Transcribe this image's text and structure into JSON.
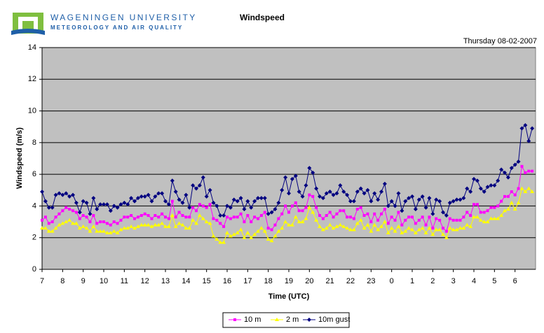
{
  "header": {
    "org": "WAGENINGEN UNIVERSITY",
    "dept": "METEOROLOGY AND AIR QUALITY"
  },
  "chart_data": {
    "type": "line",
    "title": "Windspeed",
    "subtitle": "Thursday 08-02-2007",
    "x_label": "Time (UTC)",
    "y_label": "Windspeed (m/s)",
    "ylim": [
      0,
      14
    ],
    "yticks": [
      0,
      2,
      4,
      6,
      8,
      10,
      12,
      14
    ],
    "grid": true,
    "legend": "bottom",
    "categories": [
      "7",
      null,
      null,
      null,
      null,
      null,
      "8",
      null,
      null,
      null,
      null,
      null,
      "9",
      null,
      null,
      null,
      null,
      null,
      "10",
      null,
      null,
      null,
      null,
      null,
      "11",
      null,
      null,
      null,
      null,
      null,
      "12",
      null,
      null,
      null,
      null,
      null,
      "13",
      null,
      null,
      null,
      null,
      null,
      "14",
      null,
      null,
      null,
      null,
      null,
      "15",
      null,
      null,
      null,
      null,
      null,
      "16",
      null,
      null,
      null,
      null,
      null,
      "17",
      null,
      null,
      null,
      null,
      null,
      "18",
      null,
      null,
      null,
      null,
      null,
      "19",
      null,
      null,
      null,
      null,
      null,
      "20",
      null,
      null,
      null,
      null,
      null,
      "21",
      null,
      null,
      null,
      null,
      null,
      "22",
      null,
      null,
      null,
      null,
      null,
      "23",
      null,
      null,
      null,
      null,
      null,
      "0",
      null,
      null,
      null,
      null,
      null,
      "1",
      null,
      null,
      null,
      null,
      null,
      "2",
      null,
      null,
      null,
      null,
      null,
      "3",
      null,
      null,
      null,
      null,
      null,
      "4",
      null,
      null,
      null,
      null,
      null,
      "5",
      null,
      null,
      null,
      null,
      null,
      "6",
      null,
      null,
      null,
      null,
      null
    ],
    "series": [
      {
        "name": "10 m",
        "color": "#ff00ff",
        "marker": "square",
        "values": [
          3.1,
          3.3,
          2.9,
          3.0,
          3.3,
          3.5,
          3.7,
          3.9,
          3.8,
          3.7,
          3.6,
          3.2,
          3.4,
          3.3,
          3.0,
          3.4,
          2.9,
          3.0,
          3.0,
          2.9,
          2.8,
          3.0,
          2.9,
          3.1,
          3.3,
          3.3,
          3.4,
          3.2,
          3.3,
          3.4,
          3.5,
          3.4,
          3.2,
          3.4,
          3.3,
          3.5,
          3.3,
          3.2,
          4.3,
          3.3,
          3.6,
          3.4,
          3.3,
          3.3,
          3.9,
          3.7,
          4.1,
          4.0,
          3.9,
          4.1,
          3.2,
          3.1,
          2.9,
          2.7,
          3.3,
          3.2,
          3.3,
          3.3,
          3.5,
          3.0,
          3.4,
          3.0,
          3.3,
          3.2,
          3.4,
          3.6,
          2.6,
          2.5,
          2.8,
          3.2,
          3.5,
          4.0,
          3.6,
          4.0,
          4.2,
          3.7,
          3.7,
          3.9,
          4.7,
          4.6,
          3.9,
          3.4,
          3.2,
          3.4,
          3.6,
          3.3,
          3.5,
          3.7,
          3.7,
          3.3,
          3.3,
          3.2,
          3.8,
          3.9,
          3.4,
          3.5,
          3.0,
          3.5,
          3.1,
          3.5,
          3.8,
          2.9,
          3.3,
          3.1,
          3.6,
          2.8,
          3.1,
          3.3,
          3.3,
          2.9,
          3.1,
          3.3,
          2.8,
          3.3,
          2.6,
          3.2,
          3.1,
          2.6,
          2.4,
          3.2,
          3.1,
          3.1,
          3.1,
          3.3,
          3.6,
          3.4,
          4.1,
          4.1,
          3.6,
          3.6,
          3.7,
          3.9,
          3.9,
          4.0,
          4.3,
          4.6,
          4.6,
          4.9,
          4.7,
          5.1,
          6.5,
          6.1,
          6.2,
          6.2
        ]
      },
      {
        "name": "2 m",
        "color": "#ffff00",
        "marker": "triangle",
        "values": [
          2.6,
          2.6,
          2.4,
          2.4,
          2.6,
          2.8,
          2.9,
          3.0,
          3.1,
          2.9,
          2.9,
          2.6,
          2.7,
          2.6,
          2.4,
          2.7,
          2.4,
          2.4,
          2.4,
          2.3,
          2.3,
          2.4,
          2.3,
          2.5,
          2.6,
          2.6,
          2.7,
          2.6,
          2.7,
          2.8,
          2.8,
          2.8,
          2.7,
          2.8,
          2.8,
          2.9,
          2.7,
          2.7,
          3.4,
          2.7,
          2.9,
          2.8,
          2.6,
          2.6,
          3.1,
          2.9,
          3.4,
          3.2,
          3.0,
          2.9,
          2.1,
          1.9,
          1.7,
          1.7,
          2.3,
          2.1,
          2.2,
          2.3,
          2.5,
          2.0,
          2.3,
          2.0,
          2.2,
          2.4,
          2.6,
          2.4,
          1.9,
          1.8,
          2.1,
          2.4,
          2.6,
          3.0,
          2.8,
          2.8,
          3.3,
          3.0,
          3.0,
          3.2,
          3.9,
          3.6,
          3.1,
          2.7,
          2.5,
          2.6,
          2.8,
          2.6,
          2.7,
          2.8,
          2.7,
          2.6,
          2.5,
          2.5,
          2.9,
          3.1,
          2.6,
          2.8,
          2.4,
          2.8,
          2.5,
          2.7,
          3.0,
          2.3,
          2.6,
          2.4,
          2.7,
          2.3,
          2.4,
          2.6,
          2.5,
          2.3,
          2.5,
          2.6,
          2.3,
          2.6,
          2.2,
          2.5,
          2.5,
          2.2,
          2.0,
          2.6,
          2.5,
          2.5,
          2.6,
          2.6,
          2.8,
          2.7,
          3.3,
          3.3,
          3.1,
          3.0,
          3.0,
          3.2,
          3.2,
          3.2,
          3.4,
          3.7,
          3.8,
          4.2,
          3.8,
          4.2,
          5.1,
          4.9,
          5.1,
          4.9
        ]
      },
      {
        "name": "10m gust",
        "color": "#000080",
        "marker": "diamond",
        "values": [
          4.9,
          4.3,
          3.9,
          3.9,
          4.7,
          4.8,
          4.7,
          4.8,
          4.6,
          4.7,
          4.2,
          3.6,
          4.3,
          4.2,
          3.5,
          4.5,
          3.8,
          4.1,
          4.1,
          4.1,
          3.7,
          4.0,
          3.9,
          4.1,
          4.2,
          4.1,
          4.5,
          4.3,
          4.5,
          4.6,
          4.6,
          4.7,
          4.3,
          4.6,
          4.8,
          4.8,
          4.3,
          4.1,
          5.6,
          4.9,
          4.4,
          4.2,
          4.7,
          3.9,
          5.3,
          5.1,
          5.3,
          5.8,
          4.6,
          5.0,
          4.2,
          4.0,
          3.4,
          3.4,
          4.0,
          3.9,
          4.4,
          4.3,
          4.5,
          3.8,
          4.3,
          3.9,
          4.3,
          4.5,
          4.5,
          4.5,
          3.5,
          3.6,
          3.8,
          4.2,
          5.0,
          5.8,
          4.8,
          5.7,
          5.9,
          4.9,
          4.6,
          5.3,
          6.4,
          6.1,
          5.1,
          4.6,
          4.5,
          4.8,
          4.9,
          4.7,
          4.8,
          5.3,
          4.9,
          4.7,
          4.3,
          4.3,
          4.9,
          5.1,
          4.8,
          5.0,
          4.3,
          4.8,
          4.4,
          4.9,
          5.4,
          4.0,
          4.3,
          4.0,
          4.8,
          3.7,
          4.3,
          4.5,
          4.6,
          3.8,
          4.4,
          4.6,
          3.9,
          4.5,
          3.5,
          4.4,
          4.3,
          3.6,
          3.4,
          4.2,
          4.3,
          4.4,
          4.4,
          4.5,
          5.1,
          4.9,
          5.7,
          5.6,
          5.1,
          4.9,
          5.2,
          5.3,
          5.3,
          5.6,
          6.3,
          6.1,
          5.8,
          6.4,
          6.6,
          6.8,
          8.9,
          9.1,
          8.1,
          8.9
        ]
      }
    ]
  }
}
